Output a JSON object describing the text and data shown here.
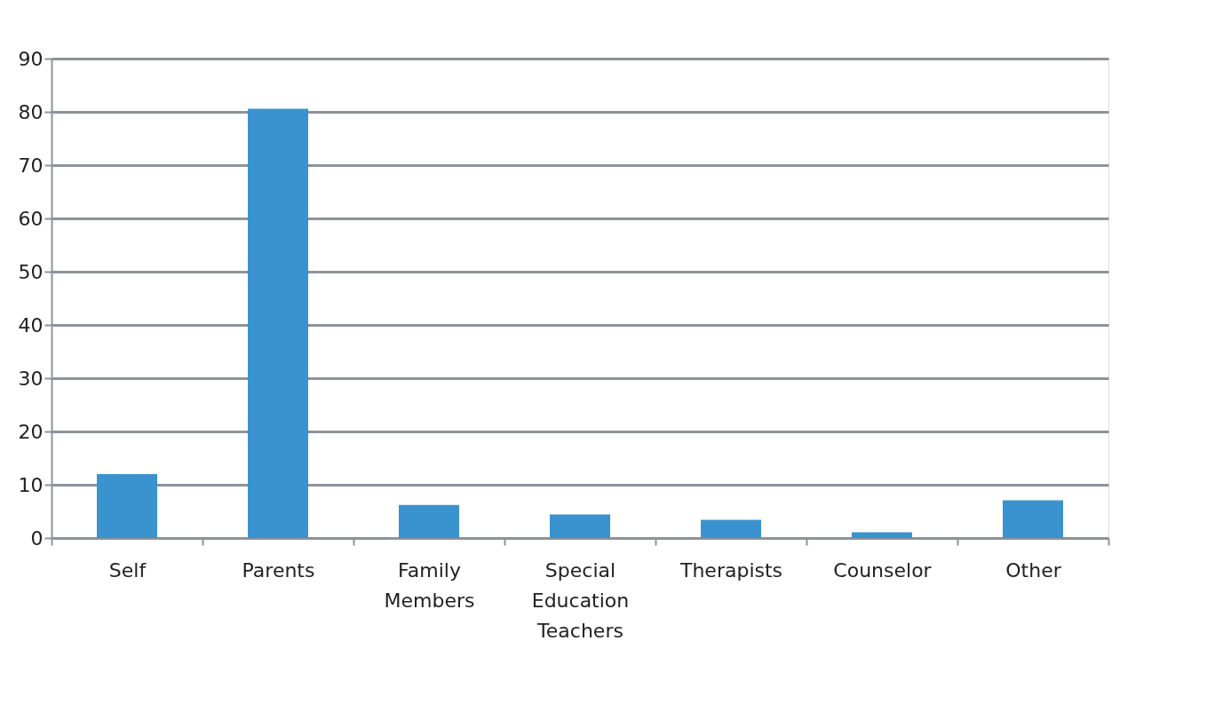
{
  "chart_data": {
    "type": "bar",
    "categories": [
      "Self",
      "Parents",
      "Family Members",
      "Special Education Teachers",
      "Therapists",
      "Counselor",
      "Other"
    ],
    "values": [
      12,
      80.6,
      6.2,
      4.4,
      3.4,
      1.1,
      7.1
    ],
    "color": "#3a93cf",
    "ylim": [
      0,
      90
    ],
    "yticks": [
      0,
      10,
      20,
      30,
      40,
      50,
      60,
      70,
      80,
      90
    ],
    "grid": "y"
  }
}
